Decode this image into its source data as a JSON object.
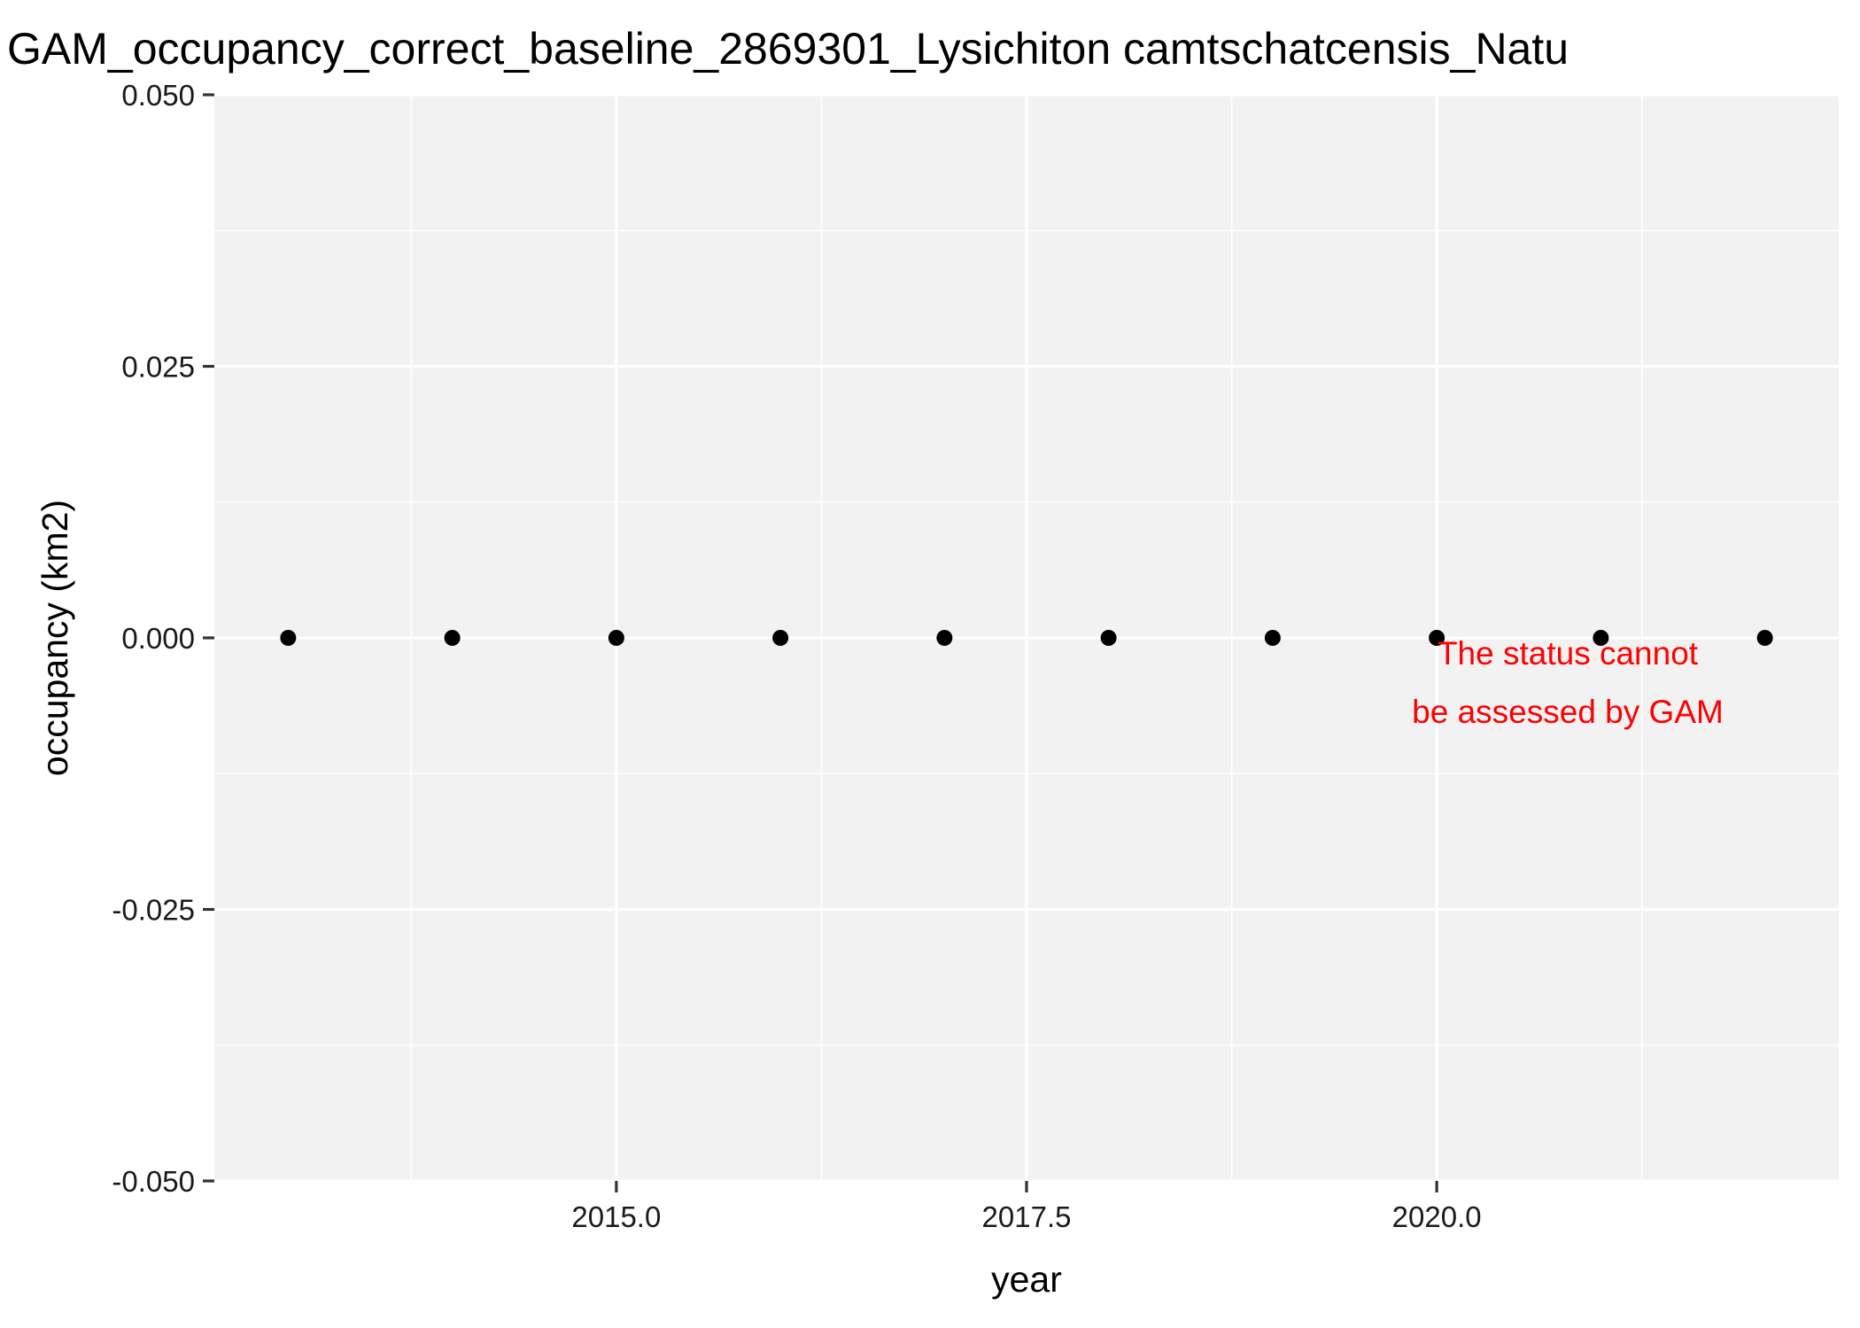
{
  "chart_data": {
    "type": "scatter",
    "title": "GAM_occupancy_correct_baseline_2869301_Lysichiton camtschatcensis_Natu",
    "xlabel": "year",
    "ylabel": "occupancy (km2)",
    "xlim": [
      2012.55,
      2022.45
    ],
    "ylim": [
      -0.05,
      0.05
    ],
    "x_ticks": [
      2015.0,
      2017.5,
      2020.0
    ],
    "x_tick_labels": [
      "2015.0",
      "2017.5",
      "2020.0"
    ],
    "y_ticks": [
      -0.05,
      -0.025,
      0.0,
      0.025,
      0.05
    ],
    "y_tick_labels": [
      "-0.050",
      "-0.025",
      "0.000",
      "0.025",
      "0.050"
    ],
    "grid": true,
    "points": [
      {
        "x": 2013,
        "y": 0
      },
      {
        "x": 2014,
        "y": 0
      },
      {
        "x": 2015,
        "y": 0
      },
      {
        "x": 2016,
        "y": 0
      },
      {
        "x": 2017,
        "y": 0
      },
      {
        "x": 2018,
        "y": 0
      },
      {
        "x": 2019,
        "y": 0
      },
      {
        "x": 2020,
        "y": 0
      },
      {
        "x": 2021,
        "y": 0
      },
      {
        "x": 2022,
        "y": 0
      }
    ],
    "annotation": {
      "lines": [
        "The status cannot",
        "be assessed by GAM"
      ],
      "color": "#ff0000"
    },
    "colors": {
      "panel": "#f2f2f2",
      "grid": "#ffffff",
      "point": "#000000"
    }
  }
}
